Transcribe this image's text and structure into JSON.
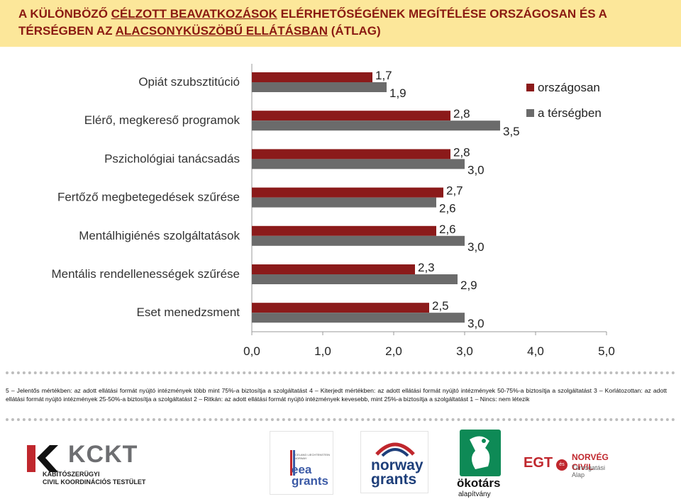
{
  "title": {
    "part1": "A KÜLÖNBÖZŐ ",
    "part2": "CÉLZOTT BEAVATKOZÁSOK",
    "part3": " ELÉRHETŐSÉGÉNEK MEGÍTÉLÉSE ORSZÁGOSAN ÉS A TÉRSÉGBEN AZ ",
    "part4": "ALACSONYKÜSZÖBŰ ELLÁTÁSBAN",
    "part5": " (ÁTLAG)"
  },
  "colors": {
    "title_band": "#fce79a",
    "title_text": "#8b1a12",
    "orszagosan": "#8b1a1a",
    "tersegben": "#6b6b6b"
  },
  "chart_data": {
    "type": "bar",
    "orientation": "horizontal",
    "categories": [
      "Opiát szubsztitúció",
      "Elérő, megkereső programok",
      "Pszichológiai tanácsadás",
      "Fertőző megbetegedések szűrése",
      "Mentálhigiénés szolgáltatások",
      "Mentális rendellenességek szűrése",
      "Eset menedzsment"
    ],
    "series": [
      {
        "name": "országosan",
        "color": "#8b1a1a",
        "values": [
          1.7,
          2.8,
          2.8,
          2.7,
          2.6,
          2.3,
          2.5
        ],
        "labels": [
          "1,7",
          "2,8",
          "2,8",
          "2,7",
          "2,6",
          "2,3",
          "2,5"
        ]
      },
      {
        "name": "a térségben",
        "color": "#6b6b6b",
        "values": [
          1.9,
          3.5,
          3.0,
          2.6,
          3.0,
          2.9,
          3.0
        ],
        "labels": [
          "1,9",
          "3,5",
          "3,0",
          "2,6",
          "3,0",
          "2,9",
          "3,0"
        ]
      }
    ],
    "xlim": [
      0,
      5
    ],
    "xticks": [
      "0,0",
      "1,0",
      "2,0",
      "3,0",
      "4,0",
      "5,0"
    ],
    "legend_position": "top-right",
    "grid": false
  },
  "note": "5 – Jelentős mértékben: az adott ellátási formát nyújtó intézmények több mint 75%-a biztosítja a szolgáltatást 4 – Kiterjedt mértékben: az adott ellátási formát nyújtó intézmények 50-75%-a biztosítja a szolgáltatást 3 – Korlátozottan: az adott ellátási formát nyújtó intézmények 25-50%-a biztosítja a szolgáltatást 2 – Ritkán: az adott ellátási formát nyújtó intézmények kevesebb, mint 25%-a biztosítja a szolgáltatást 1 – Nincs: nem létezik",
  "logos": {
    "kckt": {
      "word": "KCKT",
      "line1": "KÁBÍTÓSZERÜGYI",
      "line2": "CIVIL KOORDINÁCIÓS TESTÜLET"
    },
    "eea": {
      "small": "ICELAND LIECHTENSTEIN NORWAY",
      "word1": "eea",
      "word2": "grants"
    },
    "norway": {
      "word1": "norway",
      "word2": "grants"
    },
    "okotars": {
      "word": "ökotárs",
      "sub": "alapítvány"
    },
    "egt": {
      "word": "EGT",
      "es": "és",
      "nc": "NORVÉG CIVIL",
      "ta": "Támogatási Alap"
    }
  }
}
